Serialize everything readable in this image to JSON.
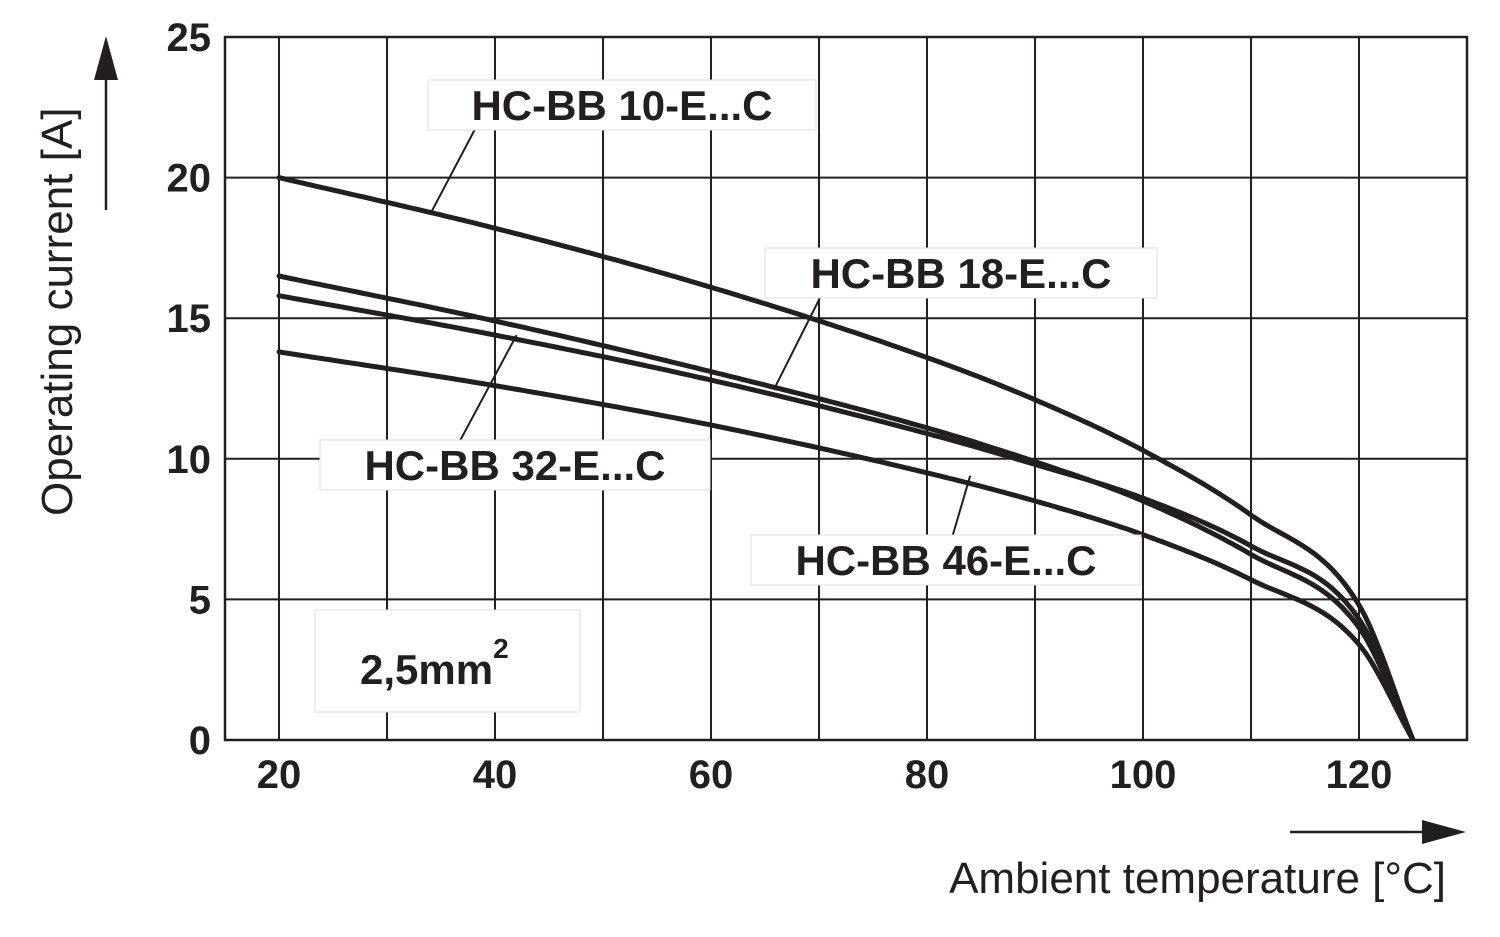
{
  "chart_data": {
    "type": "line",
    "xlabel": "Ambient temperature [°C]",
    "ylabel": "Operating current [A]",
    "xlim": [
      15,
      130
    ],
    "ylim": [
      0,
      25
    ],
    "xticks": [
      20,
      40,
      60,
      80,
      100,
      120
    ],
    "yticks": [
      0,
      5,
      10,
      15,
      20,
      25
    ],
    "grid": true,
    "annotation": {
      "text": "2,5mm",
      "superscript": "2"
    },
    "series": [
      {
        "name": "HC-BB 10-E...C",
        "x": [
          20,
          40,
          60,
          80,
          90,
          100,
          110,
          120,
          125
        ],
        "y": [
          20.0,
          18.2,
          16.1,
          13.6,
          12.1,
          10.3,
          8.0,
          4.8,
          0
        ]
      },
      {
        "name": "HC-BB 18-E...C",
        "x": [
          20,
          40,
          60,
          80,
          90,
          100,
          110,
          120,
          125
        ],
        "y": [
          16.5,
          14.9,
          13.1,
          11.1,
          9.9,
          8.5,
          6.6,
          4.0,
          0
        ]
      },
      {
        "name": "HC-BB 32-E...C",
        "x": [
          20,
          40,
          60,
          80,
          90,
          100,
          110,
          120,
          125
        ],
        "y": [
          15.8,
          14.4,
          12.8,
          10.9,
          9.8,
          8.6,
          6.9,
          4.3,
          0
        ]
      },
      {
        "name": "HC-BB 46-E...C",
        "x": [
          20,
          40,
          60,
          80,
          90,
          100,
          110,
          120,
          125
        ],
        "y": [
          13.8,
          12.6,
          11.2,
          9.5,
          8.5,
          7.3,
          5.7,
          3.4,
          0
        ]
      }
    ],
    "labels": [
      {
        "series": 0,
        "text": "HC-BB 10-E...C",
        "anchor": [
          34,
          18.7
        ]
      },
      {
        "series": 1,
        "text": "HC-BB 18-E...C",
        "anchor": [
          66,
          12.6
        ]
      },
      {
        "series": 2,
        "text": "HC-BB 32-E...C",
        "anchor": [
          42,
          14.4
        ]
      },
      {
        "series": 3,
        "text": "HC-BB 46-E...C",
        "anchor": [
          84,
          9.4
        ]
      }
    ]
  }
}
